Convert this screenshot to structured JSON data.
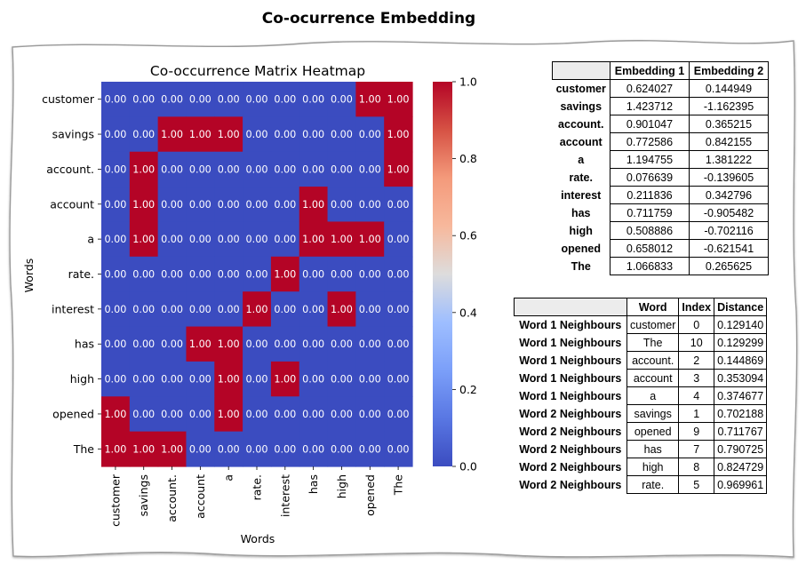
{
  "page_title": "Co-ocurrence Embedding",
  "chart_data": {
    "type": "heatmap",
    "title": "Co-occurrence Matrix Heatmap",
    "xlabel": "Words",
    "ylabel": "Words",
    "words": [
      "customer",
      "savings",
      "account.",
      "account",
      "a",
      "rate.",
      "interest",
      "has",
      "high",
      "opened",
      "The"
    ],
    "matrix": [
      [
        0,
        0,
        0,
        0,
        0,
        0,
        0,
        0,
        0,
        1,
        1
      ],
      [
        0,
        0,
        1,
        1,
        1,
        0,
        0,
        0,
        0,
        0,
        1
      ],
      [
        0,
        1,
        0,
        0,
        0,
        0,
        0,
        0,
        0,
        0,
        1
      ],
      [
        0,
        1,
        0,
        0,
        0,
        0,
        0,
        1,
        0,
        0,
        0
      ],
      [
        0,
        1,
        0,
        0,
        0,
        0,
        0,
        1,
        1,
        1,
        0
      ],
      [
        0,
        0,
        0,
        0,
        0,
        0,
        1,
        0,
        0,
        0,
        0
      ],
      [
        0,
        0,
        0,
        0,
        0,
        1,
        0,
        0,
        1,
        0,
        0
      ],
      [
        0,
        0,
        0,
        1,
        1,
        0,
        0,
        0,
        0,
        0,
        0
      ],
      [
        0,
        0,
        0,
        0,
        1,
        0,
        1,
        0,
        0,
        0,
        0
      ],
      [
        1,
        0,
        0,
        0,
        1,
        0,
        0,
        0,
        0,
        0,
        0
      ],
      [
        1,
        1,
        1,
        0,
        0,
        0,
        0,
        0,
        0,
        0,
        0
      ]
    ],
    "colorbar": {
      "range": [
        0.0,
        1.0
      ],
      "ticks": [
        "0.0",
        "0.2",
        "0.4",
        "0.6",
        "0.8",
        "1.0"
      ],
      "colormap": "coolwarm",
      "low_color": "#3b4cc0",
      "high_color": "#b40426"
    },
    "cell_text_color": "#ffffff"
  },
  "embedding_table": {
    "headers": [
      "Embedding 1",
      "Embedding 2"
    ],
    "rows": [
      {
        "word": "customer",
        "e1": "0.624027",
        "e2": "0.144949"
      },
      {
        "word": "savings",
        "e1": "1.423712",
        "e2": "-1.162395"
      },
      {
        "word": "account.",
        "e1": "0.901047",
        "e2": "0.365215"
      },
      {
        "word": "account",
        "e1": "0.772586",
        "e2": "0.842155"
      },
      {
        "word": "a",
        "e1": "1.194755",
        "e2": "1.381222"
      },
      {
        "word": "rate.",
        "e1": "0.076639",
        "e2": "-0.139605"
      },
      {
        "word": "interest",
        "e1": "0.211836",
        "e2": "0.342796"
      },
      {
        "word": "has",
        "e1": "0.711759",
        "e2": "-0.905482"
      },
      {
        "word": "high",
        "e1": "0.508886",
        "e2": "-0.702116"
      },
      {
        "word": "opened",
        "e1": "0.658012",
        "e2": "-0.621541"
      },
      {
        "word": "The",
        "e1": "1.066833",
        "e2": "0.265625"
      }
    ]
  },
  "neighbours_table": {
    "headers": [
      "Word",
      "Index",
      "Distance"
    ],
    "rows": [
      {
        "label": "Word 1 Neighbours",
        "word": "customer",
        "index": "0",
        "distance": "0.129140"
      },
      {
        "label": "Word 1 Neighbours",
        "word": "The",
        "index": "10",
        "distance": "0.129299"
      },
      {
        "label": "Word 1 Neighbours",
        "word": "account.",
        "index": "2",
        "distance": "0.144869"
      },
      {
        "label": "Word 1 Neighbours",
        "word": "account",
        "index": "3",
        "distance": "0.353094"
      },
      {
        "label": "Word 1 Neighbours",
        "word": "a",
        "index": "4",
        "distance": "0.374677"
      },
      {
        "label": "Word 2 Neighbours",
        "word": "savings",
        "index": "1",
        "distance": "0.702188"
      },
      {
        "label": "Word 2 Neighbours",
        "word": "opened",
        "index": "9",
        "distance": "0.711767"
      },
      {
        "label": "Word 2 Neighbours",
        "word": "has",
        "index": "7",
        "distance": "0.790725"
      },
      {
        "label": "Word 2 Neighbours",
        "word": "high",
        "index": "8",
        "distance": "0.824729"
      },
      {
        "label": "Word 2 Neighbours",
        "word": "rate.",
        "index": "5",
        "distance": "0.969961"
      }
    ]
  }
}
